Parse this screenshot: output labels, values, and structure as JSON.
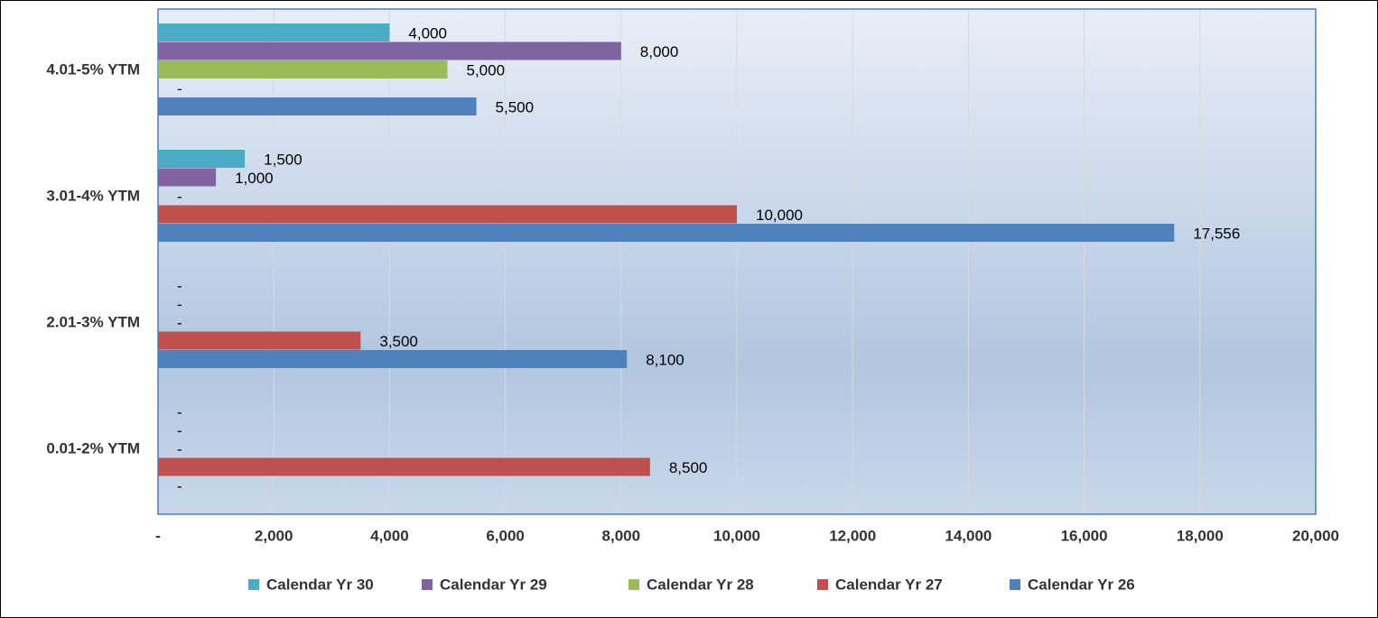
{
  "chart_data": {
    "type": "bar",
    "orientation": "horizontal",
    "categories": [
      "0.01-2% YTM",
      "2.01-3% YTM",
      "3.01-4% YTM",
      "4.01-5% YTM"
    ],
    "series": [
      {
        "name": "Calendar Yr 26",
        "color": "#4f81bd",
        "values": [
          0,
          8100,
          17556,
          5500
        ],
        "value_labels": [
          "-",
          "8,100",
          "17,556",
          "5,500"
        ]
      },
      {
        "name": "Calendar Yr 27",
        "color": "#c0504d",
        "values": [
          8500,
          3500,
          10000,
          0
        ],
        "value_labels": [
          "8,500",
          "3,500",
          "10,000",
          "-"
        ]
      },
      {
        "name": "Calendar Yr 28",
        "color": "#9bbb59",
        "values": [
          0,
          0,
          0,
          5000
        ],
        "value_labels": [
          "-",
          "-",
          "-",
          "5,000"
        ]
      },
      {
        "name": "Calendar Yr 29",
        "color": "#8064a2",
        "values": [
          0,
          0,
          1000,
          8000
        ],
        "value_labels": [
          "-",
          "-",
          "1,000",
          "8,000"
        ]
      },
      {
        "name": "Calendar Yr 30",
        "color": "#4bacc6",
        "values": [
          0,
          0,
          1500,
          4000
        ],
        "value_labels": [
          "-",
          "-",
          "1,500",
          "4,000"
        ]
      }
    ],
    "xlim": [
      0,
      20000
    ],
    "xticks": [
      {
        "value": 0,
        "label": "-"
      },
      {
        "value": 2000,
        "label": "2,000"
      },
      {
        "value": 4000,
        "label": "4,000"
      },
      {
        "value": 6000,
        "label": "6,000"
      },
      {
        "value": 8000,
        "label": "8,000"
      },
      {
        "value": 10000,
        "label": "10,000"
      },
      {
        "value": 12000,
        "label": "12,000"
      },
      {
        "value": 14000,
        "label": "14,000"
      },
      {
        "value": 16000,
        "label": "16,000"
      },
      {
        "value": 18000,
        "label": "18,000"
      },
      {
        "value": 20000,
        "label": "20,000"
      }
    ],
    "grid": true,
    "legend": "bottom"
  }
}
